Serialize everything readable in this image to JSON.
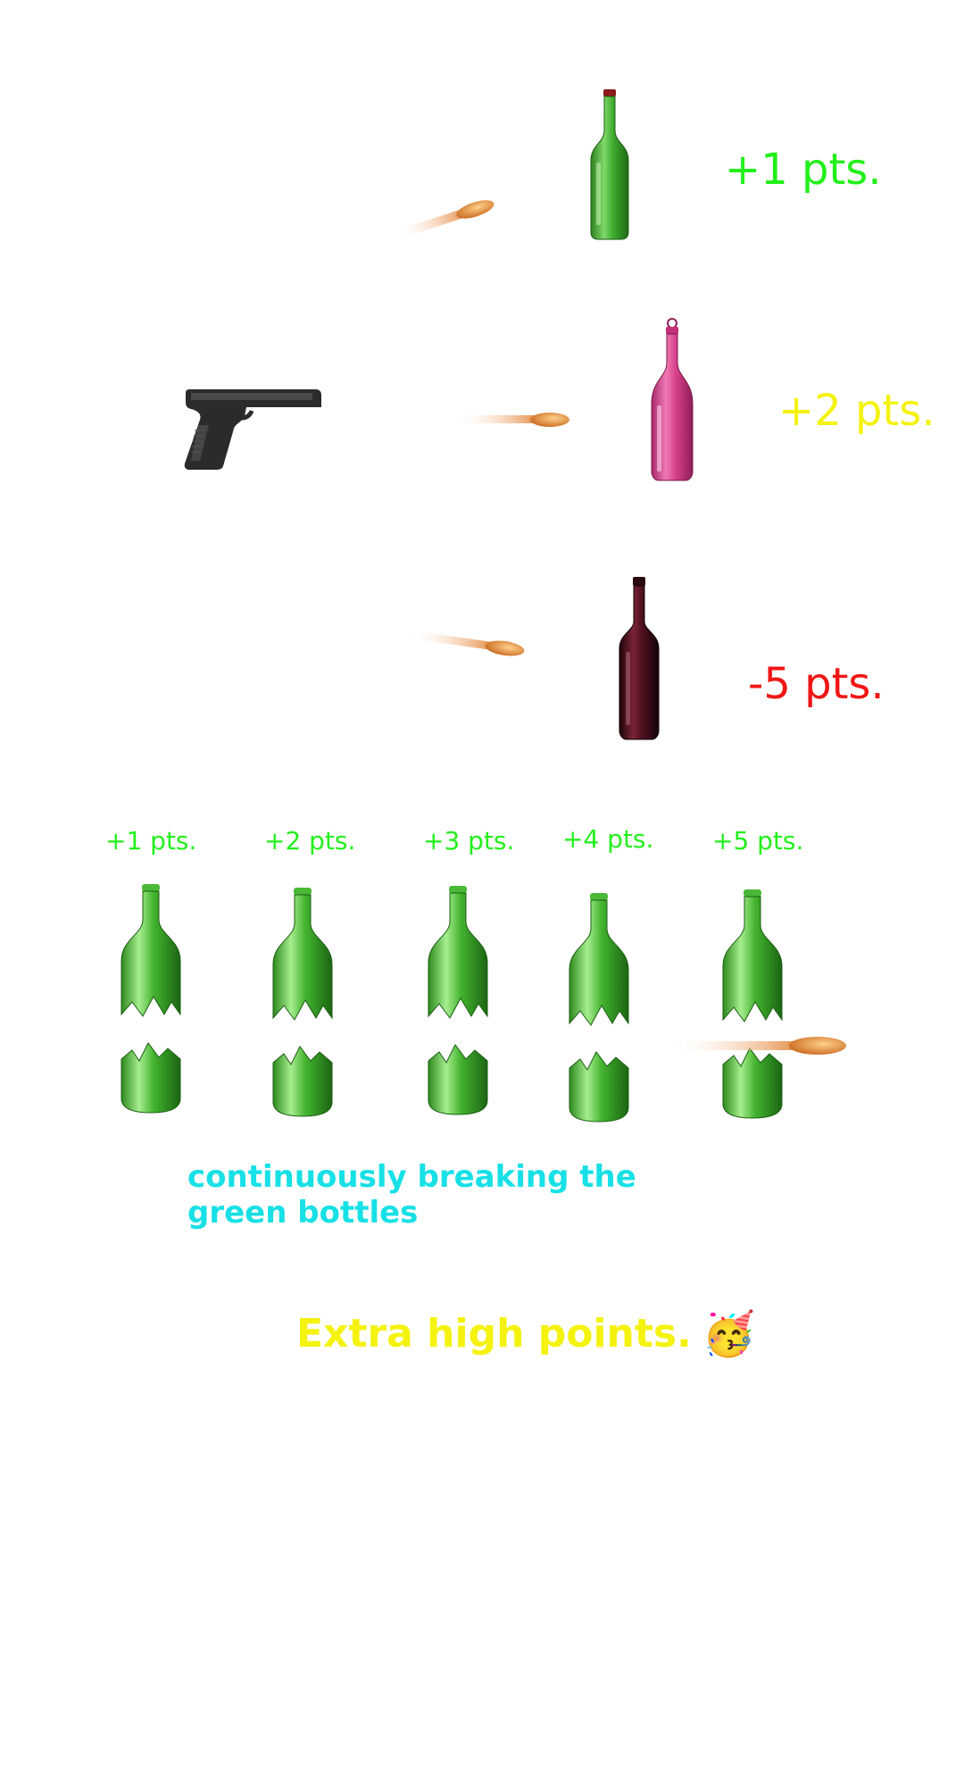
{
  "scoring": {
    "green_bottle_points": "+1 pts.",
    "pink_bottle_points": "+2 pts.",
    "wine_bottle_points": "-5 pts."
  },
  "streak": {
    "labels": [
      "+1 pts.",
      "+2 pts.",
      "+3 pts.",
      "+4 pts.",
      "+5 pts."
    ],
    "description": "continuously breaking the green bottles"
  },
  "bonus": {
    "text": "Extra high points.",
    "emoji": "🥳"
  },
  "colors": {
    "positive": "#22f01a",
    "bonus": "#f4f20e",
    "negative": "#f01616",
    "hint": "#17e0e6",
    "green_glass": "#3aa12a",
    "pink_glass": "#d63f88",
    "wine_glass": "#4a0f1c",
    "bullet": "#e58a2c"
  },
  "icons": [
    "pistol-icon",
    "bullet-icon",
    "green-bottle-icon",
    "pink-bottle-icon",
    "wine-bottle-icon",
    "broken-bottle-icon",
    "party-face-icon"
  ]
}
